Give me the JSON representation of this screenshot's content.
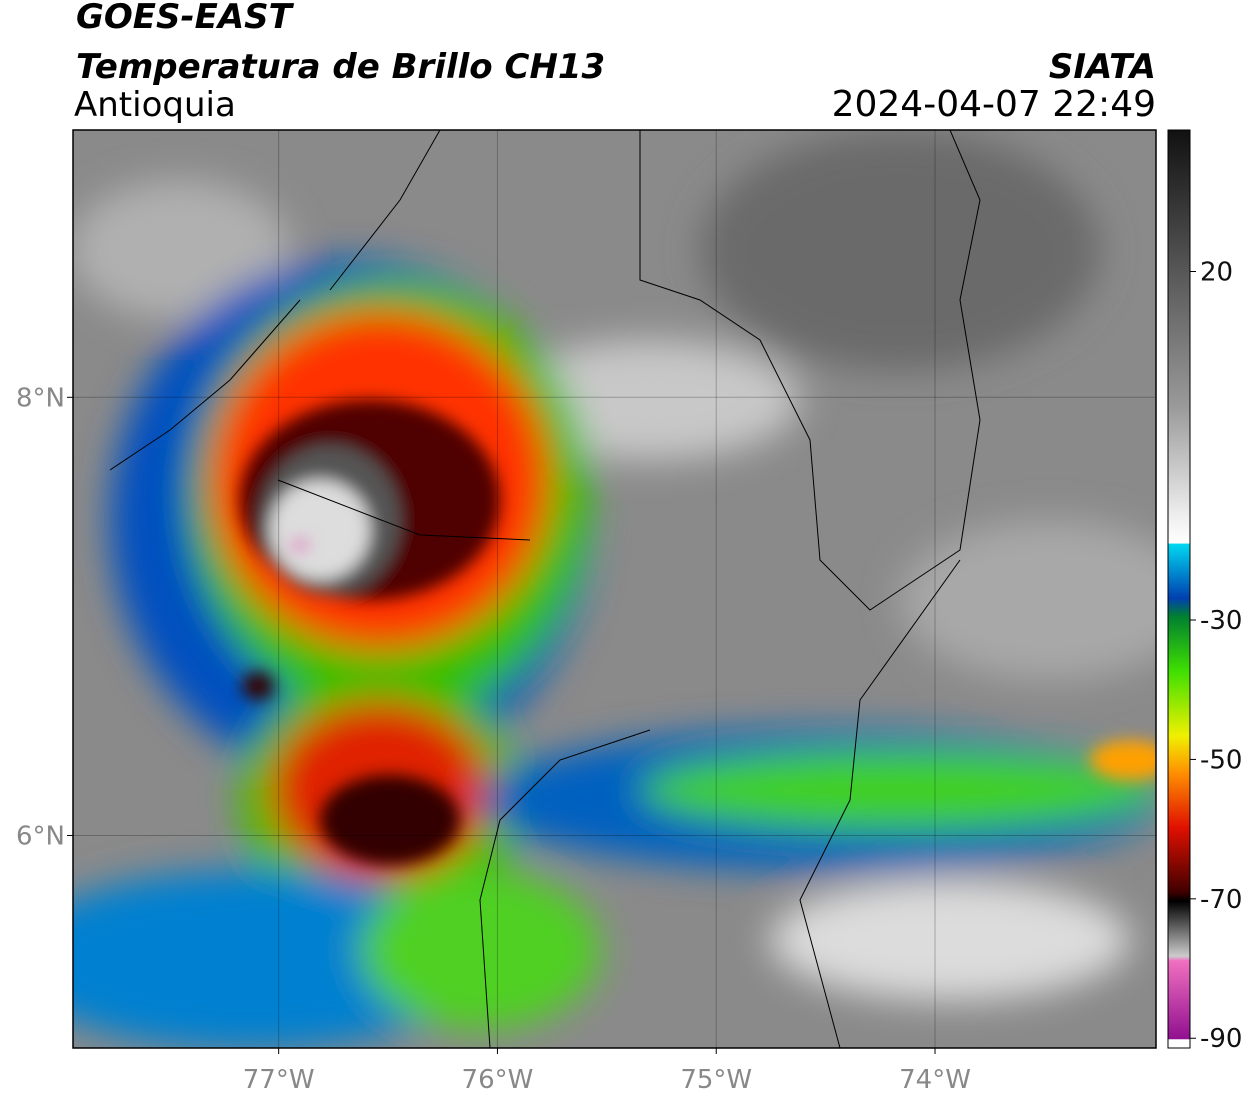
{
  "header": {
    "satellite": "GOES-EAST",
    "product": "Temperatura de Brillo CH13",
    "region": "Antioquia",
    "source": "SIATA",
    "datetime": "2024-04-07 22:49"
  },
  "map": {
    "xlim": [
      -77.94,
      -72.99
    ],
    "ylim": [
      5.03,
      9.22
    ],
    "xticks": [
      {
        "value": -77,
        "label": "77°W"
      },
      {
        "value": -76,
        "label": "76°W"
      },
      {
        "value": -75,
        "label": "75°W"
      },
      {
        "value": -74,
        "label": "74°W"
      }
    ],
    "yticks": [
      {
        "value": 6,
        "label": "6°N"
      },
      {
        "value": 8,
        "label": "8°N"
      }
    ],
    "grid": true
  },
  "colorbar": {
    "lim": [
      -91.4,
      40.3
    ],
    "ticks": [
      20,
      -30,
      -50,
      -70,
      -90
    ]
  }
}
